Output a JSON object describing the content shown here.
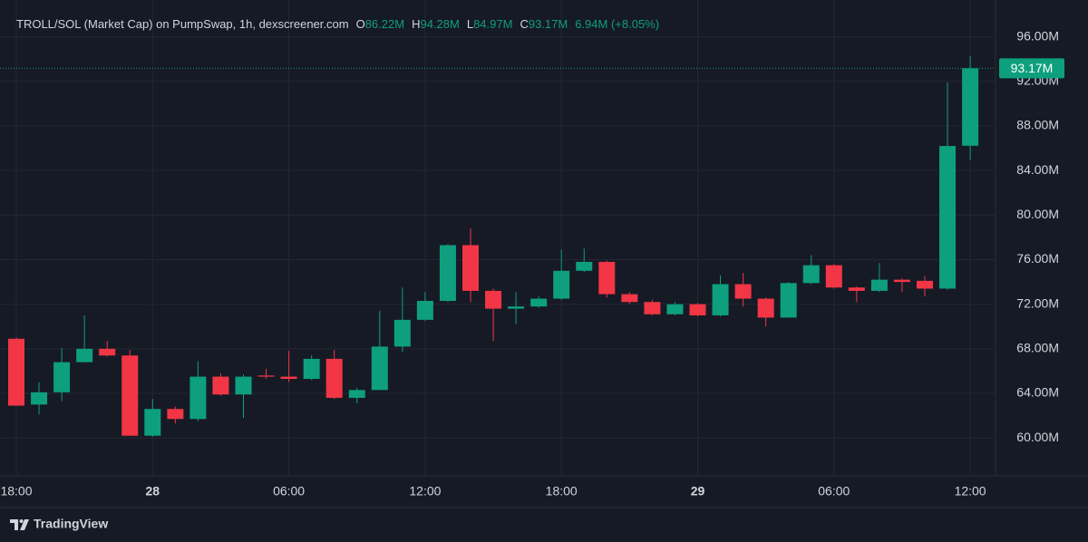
{
  "chart_data": {
    "type": "candlestick",
    "title": "TROLL/SOL (Market Cap) on PumpSwap, 1h, dexscreener.com",
    "legend_values": [
      {
        "key": "O",
        "label": "86.22M"
      },
      {
        "key": "H",
        "label": "94.28M"
      },
      {
        "key": "L",
        "label": "84.97M"
      },
      {
        "key": "C",
        "label": "93.17M"
      },
      {
        "key": "",
        "label": "6.94M (+8.05%)"
      }
    ],
    "categories": [
      "18:00",
      null,
      null,
      null,
      null,
      null,
      "28",
      null,
      null,
      null,
      null,
      null,
      "06:00",
      null,
      null,
      null,
      null,
      null,
      "12:00",
      null,
      null,
      null,
      null,
      null,
      "18:00",
      null,
      null,
      null,
      null,
      null,
      "29",
      null,
      null,
      null,
      null,
      null,
      "06:00",
      null,
      null,
      null,
      null,
      null,
      "12:00"
    ],
    "open": [
      68.9,
      63.0,
      64.1,
      66.8,
      68.0,
      67.4,
      60.2,
      62.6,
      61.7,
      65.5,
      63.9,
      65.6,
      65.5,
      65.3,
      67.1,
      63.6,
      64.3,
      68.2,
      70.6,
      72.3,
      77.3,
      73.2,
      71.6,
      71.8,
      72.5,
      75.0,
      75.8,
      72.9,
      72.2,
      71.1,
      72.0,
      71.0,
      73.8,
      72.5,
      70.8,
      73.9,
      75.5,
      73.5,
      73.2,
      74.2,
      74.1,
      73.4,
      86.22
    ],
    "high": [
      69.0,
      65.0,
      68.1,
      71.0,
      68.7,
      67.9,
      63.5,
      62.8,
      66.9,
      65.8,
      65.7,
      66.2,
      67.8,
      67.4,
      67.9,
      64.5,
      71.4,
      73.5,
      73.1,
      77.4,
      78.8,
      73.4,
      73.1,
      72.7,
      76.9,
      77.0,
      75.9,
      73.1,
      72.4,
      72.2,
      72.1,
      74.6,
      74.8,
      72.6,
      74.0,
      76.4,
      75.6,
      73.6,
      75.7,
      74.3,
      74.5,
      91.9,
      94.28
    ],
    "low": [
      62.9,
      62.1,
      63.3,
      66.8,
      67.3,
      60.2,
      60.1,
      61.3,
      61.5,
      63.8,
      61.8,
      65.3,
      65.0,
      65.2,
      63.5,
      63.1,
      64.3,
      67.7,
      70.5,
      72.2,
      72.2,
      68.7,
      70.2,
      71.7,
      72.4,
      74.9,
      72.6,
      72.0,
      71.0,
      71.0,
      70.9,
      70.9,
      71.8,
      70.0,
      70.8,
      73.8,
      73.4,
      72.2,
      73.1,
      73.1,
      72.7,
      73.3,
      84.97
    ],
    "close": [
      62.9,
      64.1,
      66.8,
      68.0,
      67.4,
      60.2,
      62.6,
      61.7,
      65.5,
      63.9,
      65.5,
      65.5,
      65.3,
      67.1,
      63.6,
      64.3,
      68.2,
      70.6,
      72.3,
      77.3,
      73.2,
      71.6,
      71.8,
      72.5,
      75.0,
      75.8,
      72.9,
      72.2,
      71.1,
      72.0,
      71.0,
      73.8,
      72.5,
      70.8,
      73.9,
      75.5,
      73.5,
      73.2,
      74.2,
      74.0,
      73.4,
      86.2,
      93.17
    ],
    "up_color": "#0e9f7e",
    "down_color": "#f23645",
    "ylim": [
      56.6,
      99.3
    ],
    "yticks": [
      {
        "value": 60,
        "label": "60.00M"
      },
      {
        "value": 64,
        "label": "64.00M"
      },
      {
        "value": 68,
        "label": "68.00M"
      },
      {
        "value": 72,
        "label": "72.00M"
      },
      {
        "value": 76,
        "label": "76.00M"
      },
      {
        "value": 80,
        "label": "80.00M"
      },
      {
        "value": 84,
        "label": "84.00M"
      },
      {
        "value": 88,
        "label": "88.00M"
      },
      {
        "value": 92,
        "label": "92.00M"
      },
      {
        "value": 96,
        "label": "96.00M"
      }
    ],
    "last_price": {
      "value": 93.17,
      "label": "93.17M"
    },
    "grid": true,
    "brand": "TradingView"
  }
}
